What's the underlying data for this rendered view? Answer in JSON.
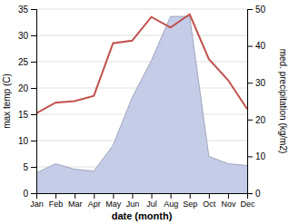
{
  "chart_data": {
    "type": "line",
    "categories": [
      "Jan",
      "Feb",
      "Mar",
      "Apr",
      "May",
      "Jun",
      "Jul",
      "Aug",
      "Sep",
      "Oct",
      "Nov",
      "Dec"
    ],
    "xlabel": "date (month)",
    "ylabel": "max temp (C)",
    "y2label": "med. precipitation (kg/m2)",
    "series": [
      {
        "type": "area",
        "axis": "y2",
        "color": "#c5cce8",
        "values": [
          5.5,
          8.0,
          6.5,
          6.0,
          13.0,
          26.0,
          36.0,
          48.0,
          48.0,
          10.0,
          8.0,
          7.5
        ]
      },
      {
        "type": "line",
        "color": "#c0504d",
        "values": [
          15.2,
          17.2,
          17.5,
          18.5,
          28.5,
          29.0,
          33.5,
          31.5,
          34.0,
          25.5,
          21.5,
          16.0
        ]
      }
    ],
    "ylim": [
      0,
      35
    ],
    "yticks": [
      0,
      5,
      10,
      15,
      20,
      25,
      30,
      35
    ],
    "y2lim": [
      0,
      50
    ],
    "y2ticks": [
      0,
      10,
      20,
      30,
      40,
      50
    ],
    "grid": true
  }
}
